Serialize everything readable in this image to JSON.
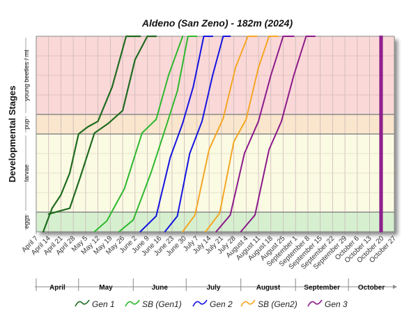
{
  "chart_data": {
    "type": "line",
    "title": "Aldeno (San Zeno) - 182m (2024)",
    "ylabel": "Developmental Stages",
    "stages": [
      {
        "name": "eggs",
        "color": "#d6f0cf"
      },
      {
        "name": "larvae",
        "color": "#fbfae3"
      },
      {
        "name": "pup",
        "color": "#fae6cd"
      },
      {
        "name": "young beetles / mt",
        "color": "#fad8d8"
      }
    ],
    "x_start": "2024-04-07",
    "x_end": "2024-10-27",
    "tick_labels": [
      "April 7",
      "April 14",
      "April 21",
      "April 28",
      "May 5",
      "May 12",
      "May 19",
      "May 26",
      "June 2",
      "June 9",
      "June 16",
      "June 23",
      "June 30",
      "July 7",
      "July 14",
      "July 21",
      "July 28",
      "August 4",
      "August 11",
      "August 18",
      "August 25",
      "September 1",
      "September 8",
      "September 15",
      "September 22",
      "September 29",
      "October 6",
      "October 13",
      "October 20",
      "October 27"
    ],
    "months": [
      "April",
      "May",
      "June",
      "July",
      "August",
      "September",
      "October"
    ],
    "series": [
      {
        "name": "Gen 1",
        "color": "#1f6b1f",
        "width": 2.2,
        "points": [
          [
            "2024-04-11",
            0
          ],
          [
            "2024-04-16",
            1.05
          ],
          [
            "2024-04-21",
            1.22
          ],
          [
            "2024-04-26",
            1.5
          ],
          [
            "2024-05-01",
            2.0
          ],
          [
            "2024-05-06",
            2.35
          ],
          [
            "2024-05-12",
            2.65
          ],
          [
            "2024-05-20",
            3.35
          ],
          [
            "2024-05-28",
            4.2
          ],
          [
            "2024-06-05",
            5.0
          ]
        ]
      },
      {
        "name": "Gen 1",
        "color": "#1f6b1f",
        "width": 2.2,
        "points": [
          [
            "2024-04-14",
            0.9
          ],
          [
            "2024-04-26",
            1.05
          ],
          [
            "2024-05-02",
            1.45
          ],
          [
            "2024-05-10",
            2.05
          ],
          [
            "2024-05-18",
            2.55
          ],
          [
            "2024-05-26",
            3.05
          ],
          [
            "2024-06-02",
            3.7
          ],
          [
            "2024-06-09",
            4.4
          ],
          [
            "2024-06-14",
            5.0
          ]
        ]
      },
      {
        "name": "SB (Gen1)",
        "color": "#2db82d",
        "width": 2.0,
        "points": [
          [
            "2024-05-10",
            0
          ],
          [
            "2024-05-17",
            0.55
          ],
          [
            "2024-05-27",
            1.3
          ],
          [
            "2024-06-06",
            2.05
          ],
          [
            "2024-06-14",
            2.75
          ],
          [
            "2024-06-21",
            3.5
          ],
          [
            "2024-06-29",
            5.0
          ]
        ]
      },
      {
        "name": "SB (Gen1)",
        "color": "#2db82d",
        "width": 2.0,
        "points": [
          [
            "2024-05-24",
            0
          ],
          [
            "2024-06-01",
            0.6
          ],
          [
            "2024-06-11",
            1.5
          ],
          [
            "2024-06-20",
            2.5
          ],
          [
            "2024-06-26",
            3.3
          ],
          [
            "2024-07-02",
            4.2
          ],
          [
            "2024-07-07",
            5.0
          ]
        ]
      },
      {
        "name": "Gen 2",
        "color": "#1414e0",
        "width": 2.0,
        "points": [
          [
            "2024-06-05",
            0
          ],
          [
            "2024-06-14",
            0.8
          ],
          [
            "2024-06-22",
            1.7
          ],
          [
            "2024-06-29",
            2.55
          ],
          [
            "2024-07-05",
            3.35
          ],
          [
            "2024-07-11",
            4.25
          ],
          [
            "2024-07-16",
            5.0
          ]
        ]
      },
      {
        "name": "Gen 2",
        "color": "#1414e0",
        "width": 2.0,
        "points": [
          [
            "2024-06-19",
            0
          ],
          [
            "2024-06-26",
            0.8
          ],
          [
            "2024-07-03",
            1.75
          ],
          [
            "2024-07-10",
            2.65
          ],
          [
            "2024-07-16",
            3.5
          ],
          [
            "2024-07-22",
            4.35
          ],
          [
            "2024-07-26",
            5.0
          ]
        ]
      },
      {
        "name": "SB (Gen2)",
        "color": "#f5a623",
        "width": 2.0,
        "points": [
          [
            "2024-06-29",
            0
          ],
          [
            "2024-07-06",
            0.85
          ],
          [
            "2024-07-14",
            1.8
          ],
          [
            "2024-07-22",
            2.8
          ],
          [
            "2024-07-29",
            3.6
          ],
          [
            "2024-08-05",
            4.4
          ],
          [
            "2024-08-10",
            5.0
          ]
        ]
      },
      {
        "name": "SB (Gen2)",
        "color": "#f5a623",
        "width": 2.0,
        "points": [
          [
            "2024-07-12",
            0
          ],
          [
            "2024-07-20",
            0.95
          ],
          [
            "2024-07-28",
            1.9
          ],
          [
            "2024-08-04",
            2.75
          ],
          [
            "2024-08-11",
            3.6
          ],
          [
            "2024-08-17",
            4.35
          ],
          [
            "2024-08-22",
            5.0
          ]
        ]
      },
      {
        "name": "Gen 3",
        "color": "#8b1a8b",
        "width": 2.0,
        "points": [
          [
            "2024-07-18",
            0
          ],
          [
            "2024-07-26",
            0.85
          ],
          [
            "2024-08-03",
            1.75
          ],
          [
            "2024-08-11",
            2.65
          ],
          [
            "2024-08-18",
            3.5
          ],
          [
            "2024-08-25",
            4.35
          ],
          [
            "2024-08-31",
            5.0
          ]
        ]
      },
      {
        "name": "Gen 3",
        "color": "#8b1a8b",
        "width": 2.0,
        "points": [
          [
            "2024-08-01",
            0
          ],
          [
            "2024-08-09",
            0.85
          ],
          [
            "2024-08-17",
            1.8
          ],
          [
            "2024-08-24",
            2.65
          ],
          [
            "2024-08-31",
            3.5
          ],
          [
            "2024-09-07",
            4.4
          ],
          [
            "2024-09-12",
            5.0
          ]
        ]
      },
      {
        "name": "Gen 3",
        "color": "#8b1a8b",
        "width": 2.5,
        "points": [
          [
            "2024-10-19",
            0
          ],
          [
            "2024-10-19",
            5.0
          ]
        ]
      },
      {
        "name": "Gen 3",
        "color": "#8b1a8b",
        "width": 2.5,
        "points": [
          [
            "2024-10-20",
            0
          ],
          [
            "2024-10-20",
            5.0
          ]
        ]
      }
    ],
    "legend": [
      {
        "label": "Gen 1",
        "color": "#1f6b1f"
      },
      {
        "label": "SB (Gen1)",
        "color": "#2db82d"
      },
      {
        "label": "Gen 2",
        "color": "#1414e0"
      },
      {
        "label": "SB (Gen2)",
        "color": "#f5a623"
      },
      {
        "label": "Gen 3",
        "color": "#8b1a8b"
      }
    ],
    "legend_position": "bottom",
    "grid": true
  }
}
